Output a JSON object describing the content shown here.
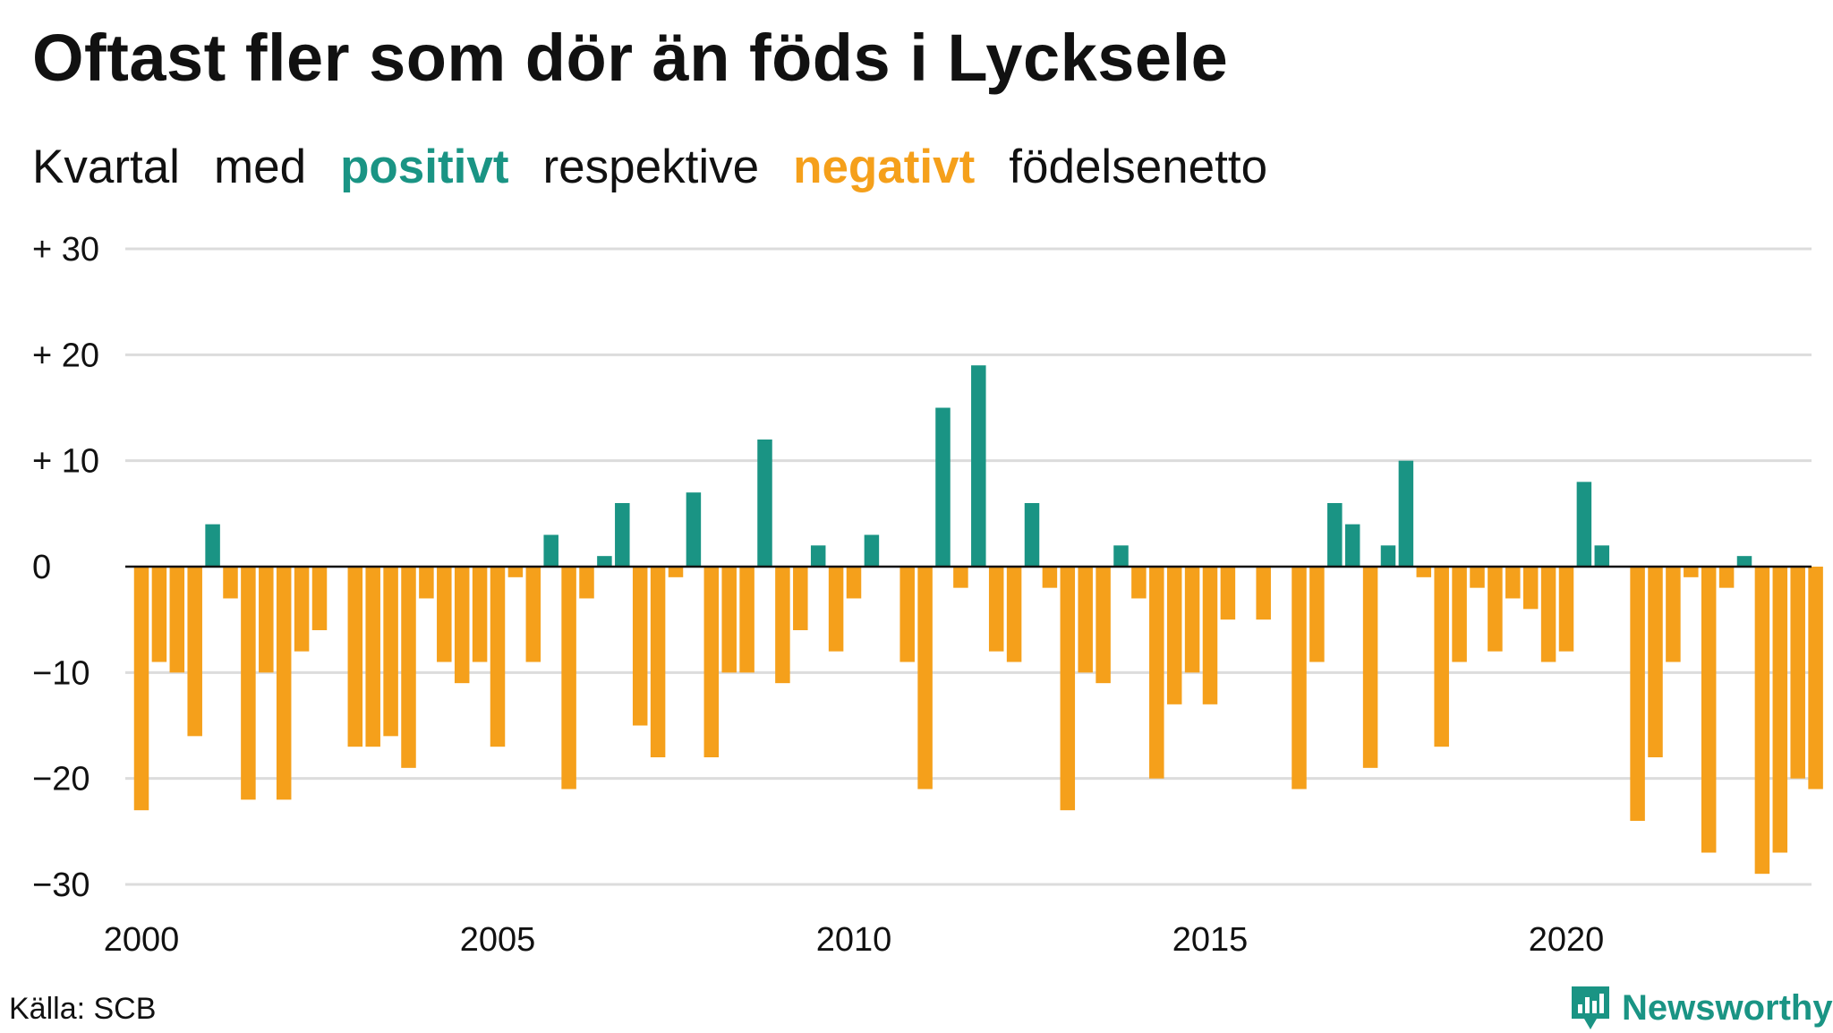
{
  "title": "Oftast fler som dör än föds i Lycksele",
  "subtitle": {
    "part1": "Kvartal",
    "part2": "med",
    "positive_word": "positivt",
    "part3": "respektive",
    "negative_word": "negativt",
    "part4": "födelsenetto"
  },
  "source": "Källa: SCB",
  "brand": "Newsworthy",
  "colors": {
    "positive": "#1a9484",
    "negative": "#f5a01b",
    "grid": "#dcdcdc",
    "zero_line": "#111111"
  },
  "chart_data": {
    "type": "bar",
    "x_start": "2000 Q1",
    "x_step": "quarter",
    "ylim": [
      -30,
      30
    ],
    "yticks": [
      {
        "value": 30,
        "label": "+ 30"
      },
      {
        "value": 20,
        "label": "+ 20"
      },
      {
        "value": 10,
        "label": "+ 10"
      },
      {
        "value": 0,
        "label": "0"
      },
      {
        "value": -10,
        "label": "−10"
      },
      {
        "value": -20,
        "label": "−20"
      },
      {
        "value": -30,
        "label": "−30"
      }
    ],
    "xticks": [
      "2000",
      "2005",
      "2010",
      "2015",
      "2020"
    ],
    "grid": true,
    "values": [
      -23,
      -9,
      -10,
      -16,
      4,
      -3,
      -22,
      -10,
      -22,
      -8,
      -6,
      0,
      -17,
      -17,
      -16,
      -19,
      -3,
      -9,
      -11,
      -9,
      -17,
      -1,
      -9,
      3,
      -21,
      -3,
      1,
      6,
      -15,
      -18,
      -1,
      7,
      -18,
      -10,
      -10,
      12,
      -11,
      -6,
      2,
      -8,
      -3,
      3,
      0,
      -9,
      -21,
      15,
      -2,
      19,
      -8,
      -9,
      6,
      -2,
      -23,
      -10,
      -11,
      2,
      -3,
      -20,
      -13,
      -10,
      -13,
      -5,
      0,
      -5,
      0,
      -21,
      -9,
      6,
      4,
      -19,
      2,
      10,
      -1,
      -17,
      -9,
      -2,
      -8,
      -3,
      -4,
      -9,
      -8,
      8,
      2,
      0,
      -24,
      -18,
      -9,
      -1,
      -27,
      -2,
      1,
      -29,
      -27,
      -20,
      -21
    ]
  }
}
